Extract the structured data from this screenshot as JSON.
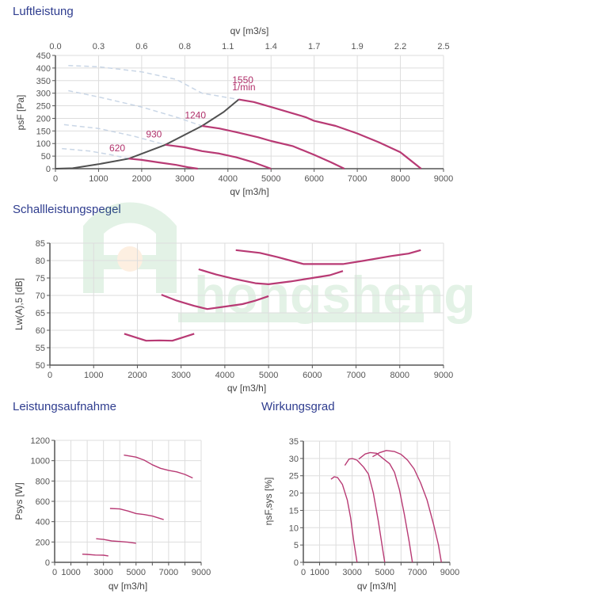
{
  "sections": {
    "luftleistung": "Luftleistung",
    "schall": "Schallleistungspegel",
    "leistung": "Leistungsaufnahme",
    "wirkung": "Wirkungsgrad"
  },
  "colors": {
    "curve": "#b83a74",
    "operating_line": "#505050",
    "dashed": "#c9d6e6",
    "grid": "#dddddd",
    "title": "#2f3d8f"
  },
  "chart_data": [
    {
      "id": "luftleistung",
      "type": "line",
      "title": "Luftleistung",
      "xlabel": "qv [m3/h]",
      "x2label": "qv [m3/s]",
      "ylabel": "psF [Pa]",
      "xlim": [
        0,
        9000
      ],
      "ylim": [
        0,
        450
      ],
      "xticks": [
        0,
        1000,
        2000,
        3000,
        4000,
        5000,
        6000,
        7000,
        8000,
        9000
      ],
      "yticks": [
        0,
        50,
        100,
        150,
        200,
        250,
        300,
        350,
        400,
        450
      ],
      "x2ticks": [
        "0.0",
        "0.3",
        "0.6",
        "0.8",
        "1.1",
        "1.4",
        "1.7",
        "1.9",
        "2.2",
        "2.5"
      ],
      "grid": true,
      "series": [
        {
          "name": "1550",
          "unit": "1/min",
          "x": [
            4250,
            4600,
            5000,
            5500,
            5800,
            6000,
            6500,
            7000,
            7500,
            8000,
            8480
          ],
          "y": [
            275,
            265,
            245,
            220,
            205,
            190,
            170,
            140,
            105,
            65,
            0
          ]
        },
        {
          "name": "1240",
          "x": [
            3400,
            3800,
            4200,
            4700,
            5000,
            5500,
            6000,
            6400,
            6700
          ],
          "y": [
            170,
            160,
            145,
            125,
            110,
            90,
            55,
            25,
            0
          ]
        },
        {
          "name": "930",
          "x": [
            2550,
            3000,
            3400,
            3800,
            4200,
            4600,
            5000
          ],
          "y": [
            95,
            85,
            70,
            60,
            45,
            25,
            0
          ]
        },
        {
          "name": "620",
          "x": [
            1700,
            2000,
            2400,
            2800,
            3100,
            3300
          ],
          "y": [
            40,
            35,
            25,
            15,
            5,
            0
          ]
        }
      ],
      "dashed_series": [
        {
          "name": "1550-ext",
          "x": [
            300,
            1000,
            2000,
            2800,
            3400,
            4250
          ],
          "y": [
            410,
            405,
            385,
            355,
            300,
            275
          ]
        },
        {
          "name": "1240-ext",
          "x": [
            300,
            1000,
            2000,
            2800,
            3400
          ],
          "y": [
            310,
            285,
            245,
            205,
            170
          ]
        },
        {
          "name": "930-ext",
          "x": [
            200,
            1000,
            1800,
            2550
          ],
          "y": [
            175,
            160,
            130,
            95
          ]
        },
        {
          "name": "620-ext",
          "x": [
            150,
            800,
            1300,
            1700
          ],
          "y": [
            80,
            70,
            55,
            40
          ]
        }
      ],
      "operating_line": {
        "x": [
          0,
          400,
          1000,
          1700,
          2550,
          3400,
          3900,
          4250
        ],
        "y": [
          0,
          2,
          18,
          40,
          95,
          170,
          225,
          275
        ]
      },
      "annotations": [
        {
          "text": "1550",
          "x": 4100,
          "y": 340
        },
        {
          "text": "1/min",
          "x": 4100,
          "y": 312
        },
        {
          "text": "1240",
          "x": 3000,
          "y": 200
        },
        {
          "text": "930",
          "x": 2100,
          "y": 125
        },
        {
          "text": "620",
          "x": 1250,
          "y": 70
        }
      ]
    },
    {
      "id": "schall",
      "type": "line",
      "title": "Schallleistungspegel",
      "xlabel": "qv [m3/h]",
      "ylabel": "Lw(A),5 [dB]",
      "xlim": [
        0,
        9000
      ],
      "ylim": [
        50,
        85
      ],
      "xticks": [
        0,
        1000,
        2000,
        3000,
        4000,
        5000,
        6000,
        7000,
        8000,
        9000
      ],
      "yticks": [
        50,
        55,
        60,
        65,
        70,
        75,
        80,
        85
      ],
      "grid": true,
      "series": [
        {
          "name": "1550",
          "x": [
            4250,
            4800,
            5200,
            5800,
            6200,
            6700,
            7200,
            7800,
            8200,
            8480
          ],
          "y": [
            83,
            82.2,
            81,
            79,
            79,
            79,
            80,
            81.3,
            82,
            83
          ]
        },
        {
          "name": "1240",
          "x": [
            3400,
            3800,
            4200,
            4700,
            5000,
            5500,
            6000,
            6400,
            6700
          ],
          "y": [
            77.5,
            76,
            74.8,
            73.5,
            73.2,
            74,
            75,
            75.8,
            77
          ]
        },
        {
          "name": "930",
          "x": [
            2550,
            2900,
            3300,
            3600,
            4000,
            4400,
            4700,
            5000
          ],
          "y": [
            70.2,
            68.5,
            67,
            66.1,
            66.8,
            67.5,
            68.5,
            69.8
          ]
        },
        {
          "name": "620",
          "x": [
            1700,
            2000,
            2200,
            2500,
            2800,
            3000,
            3300
          ],
          "y": [
            59,
            57.8,
            57,
            57.1,
            57,
            57.8,
            59
          ]
        }
      ]
    },
    {
      "id": "leistung",
      "type": "line",
      "title": "Leistungsaufnahme",
      "xlabel": "qv [m3/h]",
      "ylabel": "Psys [W]",
      "xlim": [
        0,
        9000
      ],
      "ylim": [
        0,
        1200
      ],
      "xticks": [
        0,
        1000,
        2000,
        3000,
        4000,
        5000,
        6000,
        7000,
        8000,
        9000
      ],
      "xticklabels": [
        "0",
        "1000",
        "",
        "3000",
        "",
        "5000",
        "",
        "7000",
        "",
        "9000"
      ],
      "yticks": [
        0,
        200,
        400,
        600,
        800,
        1000,
        1200
      ],
      "grid": true,
      "series": [
        {
          "name": "1550",
          "x": [
            4250,
            5000,
            5500,
            6000,
            6500,
            7000,
            7500,
            8000,
            8480
          ],
          "y": [
            1055,
            1035,
            1005,
            960,
            925,
            905,
            890,
            865,
            830
          ]
        },
        {
          "name": "1240",
          "x": [
            3400,
            4000,
            4500,
            5000,
            5500,
            6000,
            6700
          ],
          "y": [
            530,
            525,
            505,
            480,
            470,
            455,
            420
          ]
        },
        {
          "name": "930",
          "x": [
            2550,
            3000,
            3500,
            4000,
            4500,
            5000
          ],
          "y": [
            232,
            225,
            210,
            205,
            198,
            188
          ]
        },
        {
          "name": "620",
          "x": [
            1700,
            2000,
            2500,
            3000,
            3300
          ],
          "y": [
            80,
            78,
            72,
            70,
            63
          ]
        }
      ]
    },
    {
      "id": "wirkung",
      "type": "line",
      "title": "Wirkungsgrad",
      "xlabel": "qv [m3/h]",
      "ylabel": "ηsF,sys [%]",
      "xlim": [
        0,
        9000
      ],
      "ylim": [
        0,
        35
      ],
      "xticks": [
        0,
        1000,
        2000,
        3000,
        4000,
        5000,
        6000,
        7000,
        8000,
        9000
      ],
      "xticklabels": [
        "0",
        "1000",
        "",
        "3000",
        "",
        "5000",
        "",
        "7000",
        "",
        "9000"
      ],
      "yticks": [
        0,
        5,
        10,
        15,
        20,
        25,
        30,
        35
      ],
      "grid": true,
      "series": [
        {
          "name": "1550",
          "x": [
            4250,
            4700,
            5100,
            5600,
            6000,
            6400,
            6800,
            7200,
            7600,
            8000,
            8300,
            8480
          ],
          "y": [
            30.5,
            31.7,
            32.3,
            32,
            31.2,
            29.5,
            27,
            23,
            18,
            11,
            5,
            0
          ]
        },
        {
          "name": "1240",
          "x": [
            3400,
            3800,
            4100,
            4500,
            4900,
            5300,
            5600,
            5900,
            6200,
            6500,
            6700
          ],
          "y": [
            29.8,
            31.3,
            31.7,
            31.5,
            30,
            28.5,
            26,
            21,
            14,
            6,
            0
          ]
        },
        {
          "name": "930",
          "x": [
            2550,
            2800,
            3000,
            3300,
            3700,
            4000,
            4300,
            4600,
            4900,
            5000
          ],
          "y": [
            28,
            29.8,
            30,
            29.5,
            27.5,
            25.5,
            20,
            12,
            3,
            0
          ]
        },
        {
          "name": "620",
          "x": [
            1700,
            1900,
            2100,
            2400,
            2700,
            2900,
            3100,
            3300
          ],
          "y": [
            24,
            24.7,
            24.5,
            22.5,
            18,
            13,
            6,
            0
          ]
        }
      ]
    }
  ]
}
